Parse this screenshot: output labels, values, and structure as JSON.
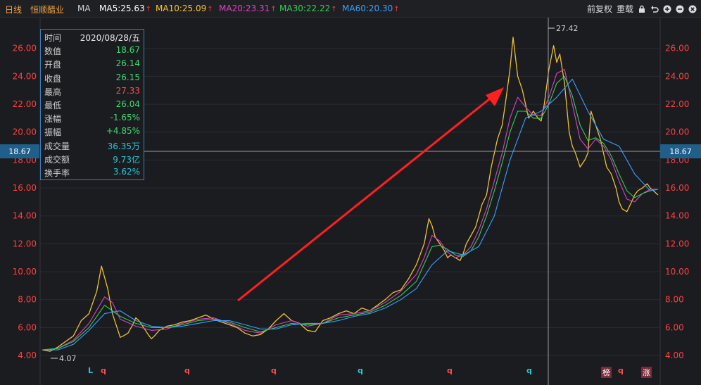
{
  "header": {
    "period": "日线",
    "stock": "恒顺醋业",
    "indicator": "MA",
    "ma": [
      {
        "label": "MA5:25.63",
        "color": "#ffffff"
      },
      {
        "label": "MA10:25.09",
        "color": "#f4c430"
      },
      {
        "label": "MA20:23.31",
        "color": "#e040c8"
      },
      {
        "label": "MA30:22.22",
        "color": "#30d050"
      },
      {
        "label": "MA60:20.30",
        "color": "#3aa0ff"
      }
    ],
    "restore": "前复权",
    "reset": "重载"
  },
  "tooltip": {
    "rows": [
      {
        "k": "时间",
        "v": "2020/08/28/五",
        "color": "#e8e8e8"
      },
      {
        "k": "数值",
        "v": "18.67",
        "color": "#3cdc6e"
      },
      {
        "k": "开盘",
        "v": "26.14",
        "color": "#3cdc6e"
      },
      {
        "k": "收盘",
        "v": "26.15",
        "color": "#3cdc6e"
      },
      {
        "k": "最高",
        "v": "27.33",
        "color": "#ff4d4d"
      },
      {
        "k": "最低",
        "v": "26.04",
        "color": "#3cdc6e"
      },
      {
        "k": "涨幅",
        "v": "-1.65%",
        "color": "#3cdc6e"
      },
      {
        "k": "振幅",
        "v": "+4.85%",
        "color": "#3cdc6e"
      },
      {
        "k": "成交量",
        "v": "36.35万",
        "color": "#26c6da"
      },
      {
        "k": "成交额",
        "v": "9.73亿",
        "color": "#26c6da"
      },
      {
        "k": "换手率",
        "v": "3.62%",
        "color": "#26c6da"
      }
    ]
  },
  "annotations": {
    "high_label": "27.42",
    "low_label": "4.07",
    "crosshair_value": "18.67"
  },
  "markers": [
    {
      "text": "L",
      "color": "#26c6da"
    },
    {
      "text": "q",
      "color": "#ff4d4d"
    },
    {
      "text": "q",
      "color": "#ff4d4d"
    },
    {
      "text": "q",
      "color": "#ff4d4d"
    },
    {
      "text": "q",
      "color": "#26c6da"
    },
    {
      "text": "q",
      "color": "#ff4d4d"
    },
    {
      "text": "q",
      "color": "#26c6da"
    },
    {
      "text": "q",
      "color": "#ff4d4d"
    }
  ],
  "badges": [
    "榜",
    "涨"
  ],
  "chart_data": {
    "type": "line",
    "ylim": [
      3.6,
      27.6
    ],
    "yticks": [
      "4.00",
      "6.00",
      "8.00",
      "10.00",
      "12.00",
      "14.00",
      "16.00",
      "18.00",
      "20.00",
      "22.00",
      "24.00",
      "26.00"
    ],
    "series": [
      {
        "color": "#f0c030",
        "x": [
          0,
          5,
          10,
          15,
          20,
          25,
          30,
          35,
          38,
          42,
          45,
          48,
          50,
          52,
          55,
          58,
          60,
          62,
          65,
          68,
          70,
          72,
          75,
          80,
          85,
          90,
          95,
          100,
          105,
          110,
          115,
          120,
          125,
          130,
          135,
          140,
          145,
          150,
          155,
          160,
          165,
          170,
          175,
          180,
          185,
          190,
          195,
          200,
          205,
          210,
          215,
          220,
          225,
          230,
          235,
          240,
          245,
          248,
          250,
          252,
          255,
          258,
          260,
          262,
          265,
          268,
          270,
          272,
          275,
          278,
          280,
          282,
          285,
          288,
          290,
          292,
          295,
          297,
          300,
          302,
          305,
          308,
          310,
          312,
          315,
          318,
          320,
          322,
          325,
          328,
          330,
          332,
          335,
          338,
          340,
          342,
          345,
          348,
          350,
          352,
          355,
          358,
          360,
          362,
          365,
          368,
          370,
          372,
          375,
          378,
          380,
          382,
          385,
          388,
          390,
          392,
          395
        ],
        "y": [
          4.4,
          4.3,
          4.6,
          5.0,
          5.4,
          6.5,
          7.0,
          8.6,
          10.4,
          8.8,
          7.0,
          6.0,
          5.3,
          5.4,
          5.6,
          6.2,
          6.7,
          6.5,
          6.0,
          5.5,
          5.2,
          5.4,
          5.8,
          6.1,
          6.2,
          6.4,
          6.5,
          6.7,
          6.9,
          6.6,
          6.4,
          6.2,
          6.0,
          5.6,
          5.4,
          5.5,
          5.9,
          6.5,
          7.0,
          6.5,
          6.3,
          5.8,
          5.7,
          6.5,
          6.7,
          7.0,
          7.2,
          7.0,
          7.4,
          7.2,
          7.6,
          8.0,
          8.5,
          8.7,
          9.5,
          10.5,
          12.0,
          13.8,
          13.3,
          12.5,
          12.0,
          11.5,
          11.0,
          11.2,
          11.0,
          10.8,
          11.3,
          12.0,
          12.6,
          13.2,
          14.0,
          14.8,
          15.5,
          17.5,
          18.5,
          19.5,
          20.5,
          22.0,
          24.5,
          26.8,
          24.0,
          23.0,
          22.0,
          21.0,
          21.5,
          21.0,
          20.8,
          22.0,
          24.5,
          26.2,
          25.0,
          25.6,
          23.5,
          20.0,
          19.0,
          18.5,
          17.5,
          18.0,
          18.5,
          21.5,
          20.5,
          19.5,
          18.5,
          17.5,
          17.0,
          16.0,
          15.0,
          14.5,
          14.3,
          15.0,
          15.5,
          15.8,
          16.0,
          16.3,
          16.0,
          15.8,
          15.5
        ]
      },
      {
        "color": "#e040c8",
        "x": [
          0,
          10,
          20,
          30,
          40,
          45,
          50,
          60,
          70,
          80,
          90,
          100,
          110,
          120,
          130,
          140,
          150,
          160,
          170,
          180,
          190,
          200,
          210,
          220,
          230,
          240,
          245,
          250,
          255,
          260,
          265,
          270,
          275,
          280,
          285,
          290,
          295,
          300,
          305,
          310,
          315,
          320,
          325,
          330,
          335,
          340,
          345,
          350,
          355,
          360,
          365,
          370,
          375,
          380,
          385,
          390,
          395
        ],
        "y": [
          4.4,
          4.5,
          5.1,
          6.3,
          8.2,
          7.8,
          6.6,
          6.1,
          5.8,
          5.9,
          6.3,
          6.6,
          6.7,
          6.3,
          5.8,
          5.6,
          6.2,
          6.5,
          6.1,
          6.3,
          6.9,
          7.0,
          7.2,
          7.8,
          8.6,
          9.8,
          11.0,
          12.6,
          12.2,
          11.4,
          11.0,
          11.2,
          11.8,
          13.0,
          14.5,
          16.5,
          18.5,
          21.0,
          22.5,
          21.8,
          21.2,
          21.2,
          22.5,
          24.2,
          24.5,
          22.0,
          19.5,
          18.8,
          19.5,
          19.0,
          18.0,
          16.5,
          15.2,
          15.0,
          15.6,
          15.9,
          15.9
        ]
      },
      {
        "color": "#30d050",
        "x": [
          0,
          10,
          20,
          30,
          40,
          50,
          60,
          70,
          80,
          90,
          100,
          110,
          120,
          130,
          140,
          150,
          160,
          170,
          180,
          190,
          200,
          210,
          220,
          230,
          240,
          250,
          255,
          260,
          265,
          270,
          275,
          280,
          285,
          290,
          295,
          300,
          305,
          310,
          315,
          320,
          325,
          330,
          335,
          340,
          345,
          350,
          355,
          360,
          365,
          370,
          375,
          380,
          385,
          390,
          395
        ],
        "y": [
          4.4,
          4.5,
          5.0,
          6.0,
          7.6,
          6.8,
          6.3,
          6.0,
          6.0,
          6.2,
          6.5,
          6.6,
          6.4,
          6.0,
          5.7,
          6.0,
          6.3,
          6.2,
          6.3,
          6.7,
          6.9,
          7.1,
          7.6,
          8.3,
          9.3,
          11.8,
          11.9,
          11.6,
          11.2,
          11.1,
          11.5,
          12.5,
          14.0,
          15.8,
          17.8,
          20.0,
          21.5,
          21.5,
          21.0,
          21.0,
          22.0,
          23.5,
          24.0,
          22.6,
          20.5,
          19.4,
          19.6,
          19.2,
          18.3,
          17.0,
          15.8,
          15.3,
          15.6,
          15.8,
          15.9
        ]
      },
      {
        "color": "#3aa0ff",
        "x": [
          0,
          10,
          20,
          30,
          40,
          50,
          60,
          70,
          80,
          90,
          100,
          110,
          120,
          130,
          140,
          150,
          160,
          170,
          180,
          190,
          200,
          210,
          220,
          230,
          240,
          250,
          260,
          270,
          280,
          290,
          300,
          310,
          320,
          330,
          340,
          350,
          360,
          370,
          380,
          390,
          395
        ],
        "y": [
          4.4,
          4.4,
          4.8,
          5.8,
          7.0,
          7.2,
          6.5,
          6.1,
          6.0,
          6.1,
          6.3,
          6.5,
          6.5,
          6.2,
          5.9,
          5.9,
          6.2,
          6.3,
          6.3,
          6.5,
          6.8,
          7.0,
          7.4,
          8.0,
          8.8,
          10.5,
          11.5,
          11.2,
          11.8,
          14.0,
          18.0,
          21.0,
          21.5,
          22.5,
          23.8,
          21.5,
          19.5,
          19.0,
          17.0,
          15.8,
          15.9
        ]
      }
    ]
  }
}
